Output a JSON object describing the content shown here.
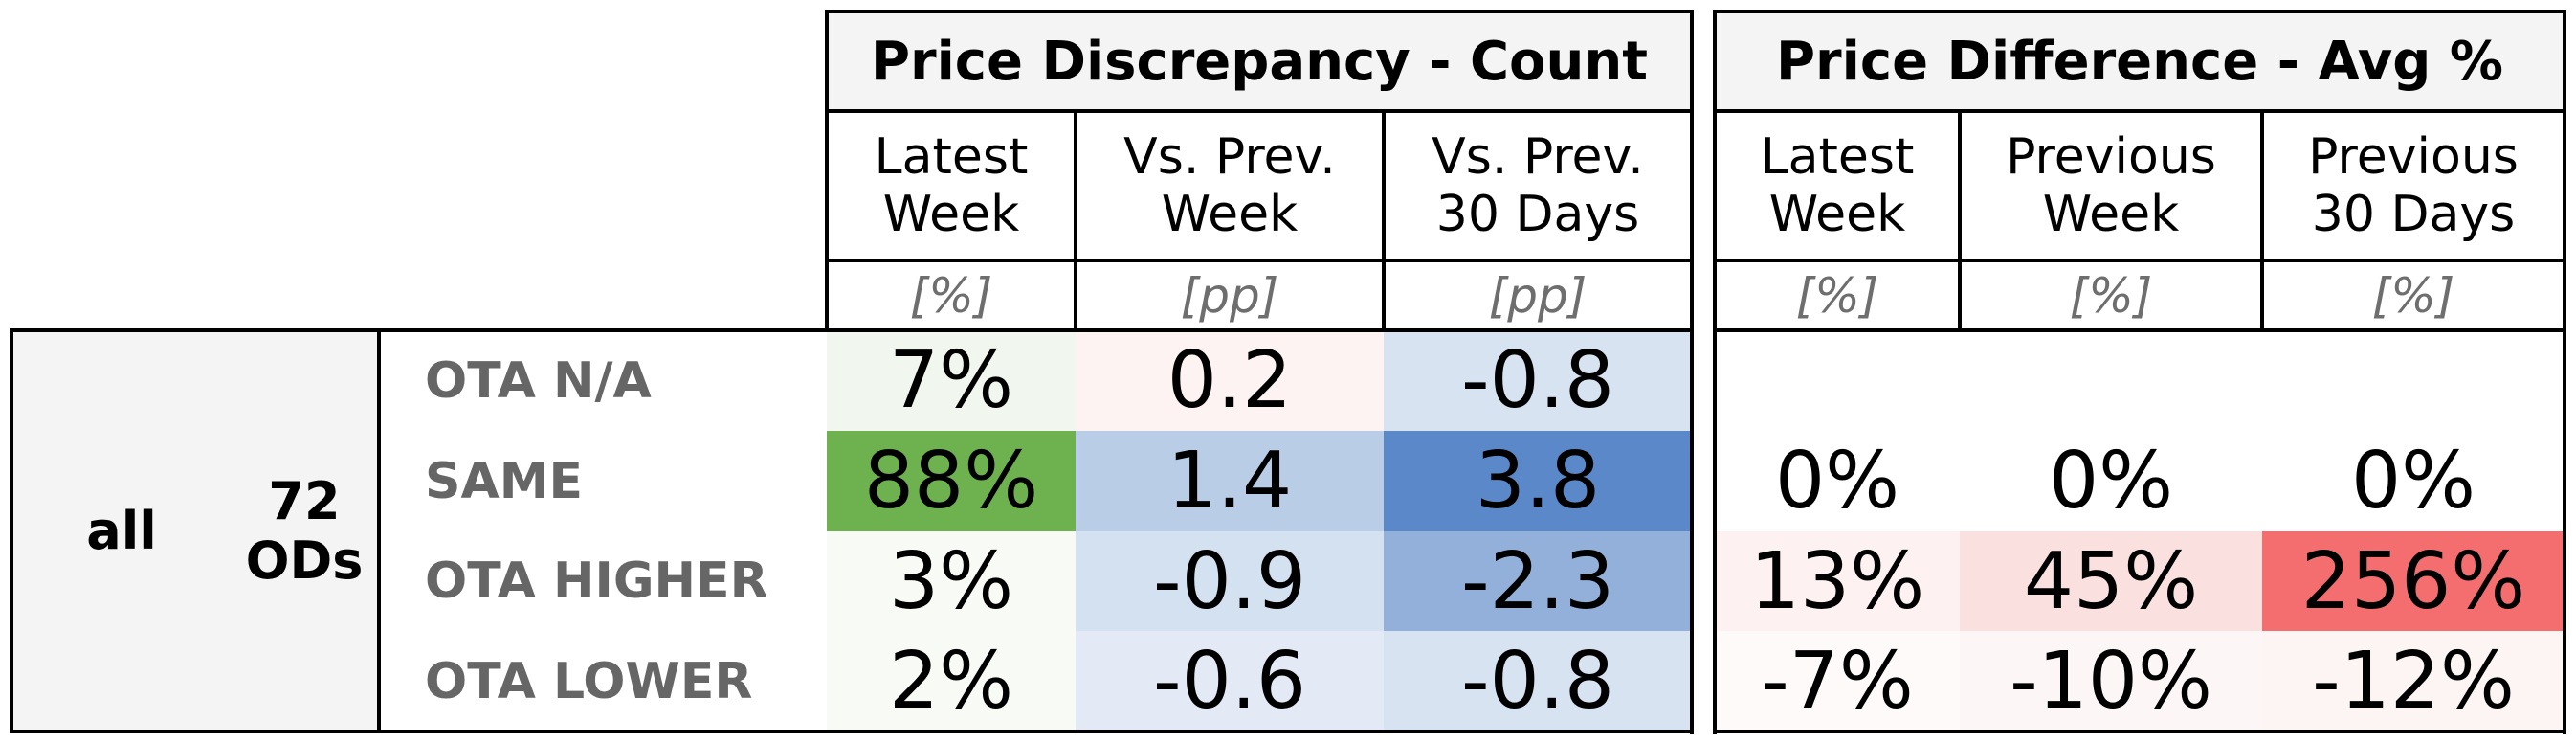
{
  "panel_left": {
    "title": "Price Discrepancy - Count",
    "columns": [
      {
        "label": "Latest\nWeek",
        "unit": "[%]"
      },
      {
        "label": "Vs. Prev.\nWeek",
        "unit": "[pp]"
      },
      {
        "label": "Vs. Prev.\n30 Days",
        "unit": "[pp]"
      }
    ],
    "rows": [
      [
        "7%",
        "0.2",
        "-0.8"
      ],
      [
        "88%",
        "1.4",
        "3.8"
      ],
      [
        "3%",
        "-0.9",
        "-2.3"
      ],
      [
        "2%",
        "-0.6",
        "-0.8"
      ]
    ],
    "colors": [
      [
        "#f1f6ee",
        "#fdf3f3",
        "#d7e3f1"
      ],
      [
        "#6db24e",
        "#b9cde6",
        "#5a88c8"
      ],
      [
        "#f8faf6",
        "#d4e1f0",
        "#92b0d9"
      ],
      [
        "#f8faf6",
        "#e3eaf5",
        "#d7e3f1"
      ]
    ]
  },
  "panel_right": {
    "title": "Price Difference - Avg %",
    "columns": [
      {
        "label": "Latest\nWeek",
        "unit": "[%]"
      },
      {
        "label": "Previous\nWeek",
        "unit": "[%]"
      },
      {
        "label": "Previous\n30 Days",
        "unit": "[%]"
      }
    ],
    "rows": [
      [
        "",
        "",
        ""
      ],
      [
        "0%",
        "0%",
        "0%"
      ],
      [
        "13%",
        "45%",
        "256%"
      ],
      [
        "-7%",
        "-10%",
        "-12%"
      ]
    ],
    "colors": [
      [
        "#ffffff",
        "#ffffff",
        "#ffffff"
      ],
      [
        "#ffffff",
        "#ffffff",
        "#ffffff"
      ],
      [
        "#fdf1f1",
        "#fbe0e0",
        "#f46d6f"
      ],
      [
        "#fefafa",
        "#fdf6f6",
        "#fdf4f4"
      ]
    ]
  },
  "group": {
    "segment": "all",
    "od_count": "72\nODs"
  },
  "row_labels": [
    "OTA N/A",
    "SAME",
    "OTA HIGHER",
    "OTA LOWER"
  ]
}
